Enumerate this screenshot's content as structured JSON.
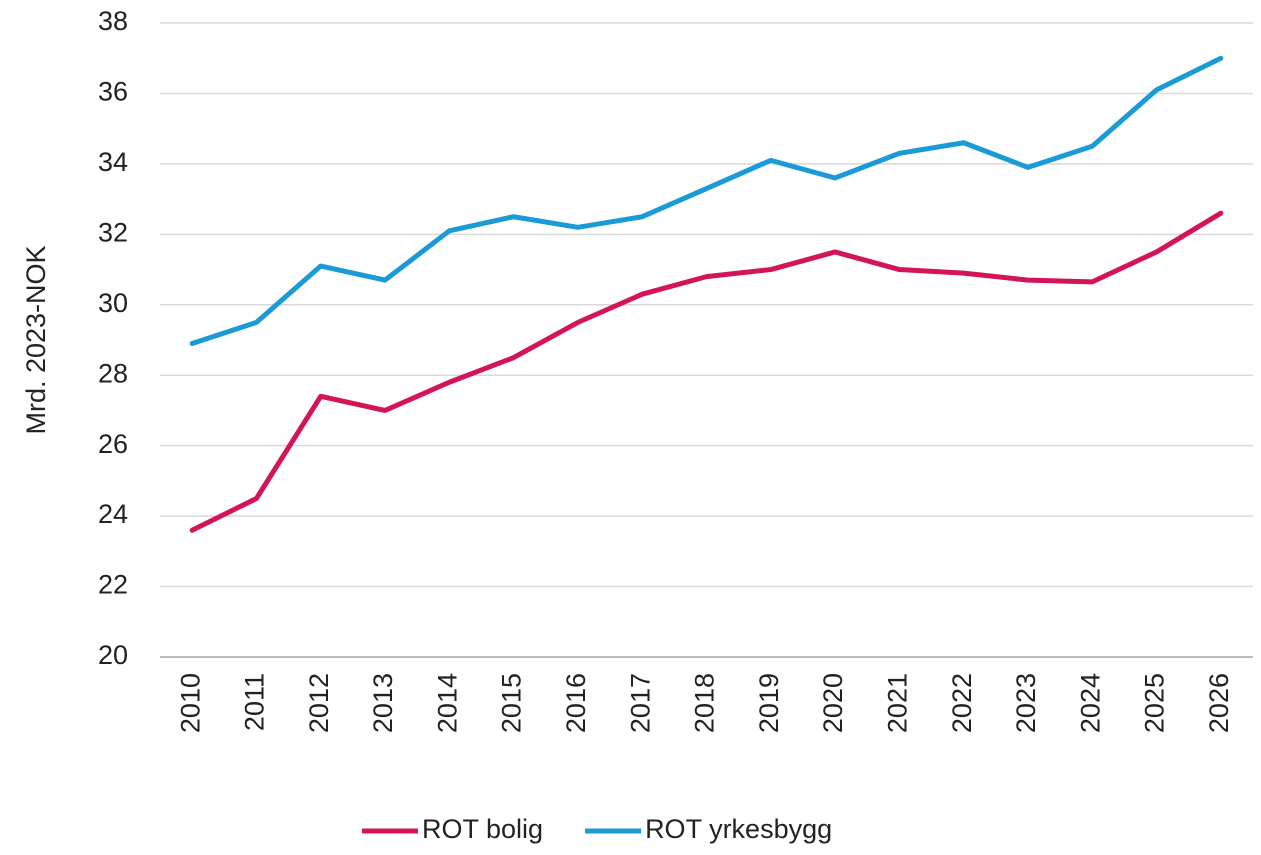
{
  "chart_data": {
    "type": "line",
    "y_label": "Mrd. 2023-NOK",
    "categories": [
      "2010",
      "2011",
      "2012",
      "2013",
      "2014",
      "2015",
      "2016",
      "2017",
      "2018",
      "2019",
      "2020",
      "2021",
      "2022",
      "2023",
      "2024",
      "2025",
      "2026"
    ],
    "series": [
      {
        "name": "ROT bolig",
        "color": "#d4145a",
        "values": [
          23.6,
          24.5,
          27.4,
          27.0,
          27.8,
          28.5,
          29.5,
          30.3,
          30.8,
          31.0,
          31.5,
          31.0,
          30.9,
          30.7,
          30.65,
          31.5,
          32.6
        ]
      },
      {
        "name": "ROT yrkesbygg",
        "color": "#1a9ad6",
        "values": [
          28.9,
          29.5,
          31.1,
          30.7,
          32.1,
          32.5,
          32.2,
          32.5,
          33.3,
          34.1,
          33.6,
          34.3,
          34.6,
          33.9,
          34.5,
          36.1,
          37.0
        ]
      }
    ],
    "ylim": [
      20,
      38
    ],
    "yticks": [
      20,
      22,
      24,
      26,
      28,
      30,
      32,
      34,
      36,
      38
    ],
    "grid": true,
    "legend": "bottom"
  }
}
